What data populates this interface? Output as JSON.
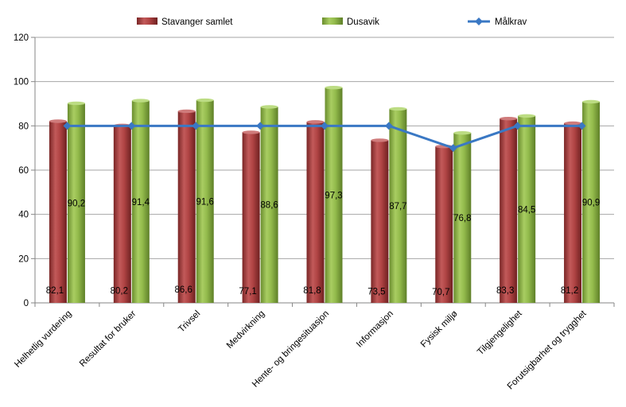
{
  "chart_data": {
    "type": "bar",
    "title": "",
    "xlabel": "",
    "ylabel": "",
    "ylim": [
      0,
      120
    ],
    "yticks": [
      0,
      20,
      40,
      60,
      80,
      100,
      120
    ],
    "grid": true,
    "legend_position": "top",
    "categories": [
      "Helhetlig vurdering",
      "Resultat for bruker",
      "Trivsel",
      "Medvirkning",
      "Hente- og bringesituasjon",
      "Informasjon",
      "Fysisk miljø",
      "Tilgjengelighet",
      "Forutsigbarhet og trygghet"
    ],
    "series": [
      {
        "name": "Stavanger samlet",
        "type": "bar",
        "color": "#a03a3a",
        "values": [
          82.1,
          80.2,
          86.6,
          77.1,
          81.8,
          73.5,
          70.7,
          83.3,
          81.2
        ],
        "labels": [
          "82,1",
          "80,2",
          "86,6",
          "77,1",
          "81,8",
          "73,5",
          "70,7",
          "83,3",
          "81,2"
        ]
      },
      {
        "name": "Dusavik",
        "type": "bar",
        "color": "#8cb445",
        "values": [
          90.2,
          91.4,
          91.6,
          88.6,
          97.3,
          87.7,
          76.8,
          84.5,
          90.9
        ],
        "labels": [
          "90,2",
          "91,4",
          "91,6",
          "88,6",
          "97,3",
          "87,7",
          "76,8",
          "84,5",
          "90,9"
        ]
      },
      {
        "name": "Målkrav",
        "type": "line",
        "color": "#3a78c4",
        "values": [
          80,
          80,
          80,
          80,
          80,
          80,
          70,
          80,
          80
        ]
      }
    ]
  }
}
